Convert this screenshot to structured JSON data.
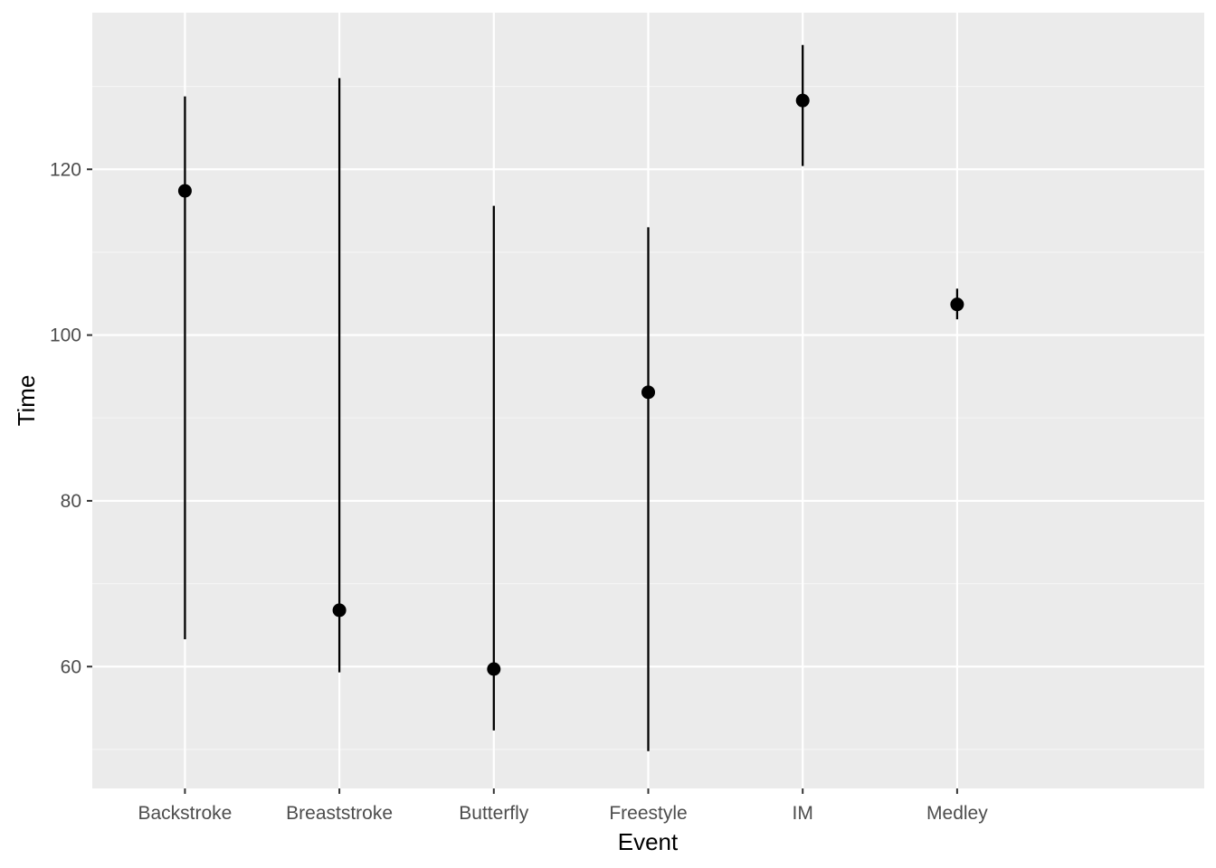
{
  "chart_data": {
    "type": "pointrange",
    "title": "",
    "xlabel": "Event",
    "ylabel": "Time",
    "categories": [
      "Backstroke",
      "Breaststroke",
      "Butterfly",
      "Freestyle",
      "IM",
      "Medley"
    ],
    "points": [
      {
        "category": "Backstroke",
        "y": 117.4,
        "ymin": 63.3,
        "ymax": 128.8
      },
      {
        "category": "Breaststroke",
        "y": 66.8,
        "ymin": 59.3,
        "ymax": 131.0
      },
      {
        "category": "Butterfly",
        "y": 59.7,
        "ymin": 52.3,
        "ymax": 115.6
      },
      {
        "category": "Freestyle",
        "y": 93.1,
        "ymin": 49.8,
        "ymax": 113.0
      },
      {
        "category": "IM",
        "y": 128.3,
        "ymin": 120.4,
        "ymax": 135.0
      },
      {
        "category": "Medley",
        "y": 103.7,
        "ymin": 101.9,
        "ymax": 105.6
      }
    ],
    "ylim": [
      45.3,
      138.9
    ],
    "y_ticks": [
      60,
      80,
      100,
      120
    ],
    "y_tick_labels": [
      "60",
      "80",
      "100",
      "120"
    ],
    "grid": true,
    "legend": "none",
    "colors": {
      "panel_background": "#ebebeb",
      "grid_major": "#ffffff",
      "grid_minor": "#f5f5f5",
      "marks": "#000000",
      "tick_label": "#4d4d4d"
    }
  }
}
